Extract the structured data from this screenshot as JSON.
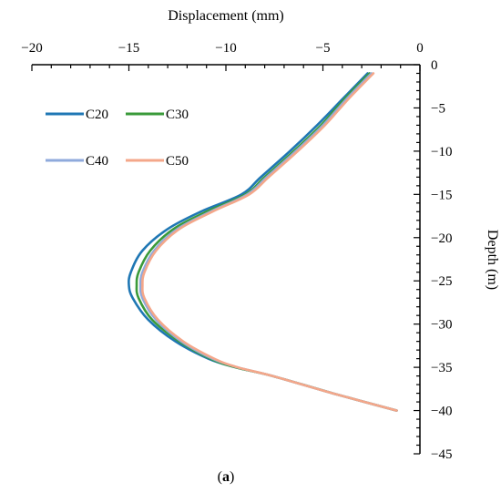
{
  "chart_data": {
    "type": "line",
    "title": "",
    "xlabel": "Displacement (mm)",
    "ylabel": "Depth (m)",
    "xlim": [
      -20,
      0
    ],
    "ylim": [
      -45,
      0
    ],
    "xticks": [
      -20,
      -15,
      -10,
      -5,
      0
    ],
    "yticks": [
      0,
      -5,
      -10,
      -15,
      -20,
      -25,
      -30,
      -35,
      -40,
      -45
    ],
    "x_axis_position": "top",
    "y_axis_position": "right",
    "grid": false,
    "legend_position": "top-left",
    "caption": {
      "open": "(",
      "letter": "a",
      "close": ")"
    },
    "series": [
      {
        "name": "C20",
        "color": "#1f77b4",
        "points": [
          [
            -2.7,
            -1
          ],
          [
            -4.0,
            -4
          ],
          [
            -5.3,
            -7
          ],
          [
            -6.7,
            -10
          ],
          [
            -8.2,
            -13
          ],
          [
            -9.2,
            -15
          ],
          [
            -11.3,
            -17
          ],
          [
            -13.0,
            -19
          ],
          [
            -14.3,
            -21.5
          ],
          [
            -14.9,
            -24
          ],
          [
            -15.0,
            -25.5
          ],
          [
            -14.8,
            -27
          ],
          [
            -14.0,
            -29.5
          ],
          [
            -12.6,
            -32
          ],
          [
            -10.9,
            -34
          ],
          [
            -9.5,
            -35
          ],
          [
            -7.6,
            -36
          ],
          [
            -4.5,
            -38
          ],
          [
            -1.2,
            -40
          ]
        ]
      },
      {
        "name": "C30",
        "color": "#3a9a3a",
        "points": [
          [
            -2.6,
            -1
          ],
          [
            -3.9,
            -4
          ],
          [
            -5.1,
            -7
          ],
          [
            -6.5,
            -10
          ],
          [
            -8.0,
            -13
          ],
          [
            -9.0,
            -15
          ],
          [
            -11.0,
            -17
          ],
          [
            -12.7,
            -19
          ],
          [
            -13.9,
            -21.5
          ],
          [
            -14.5,
            -24
          ],
          [
            -14.6,
            -25.5
          ],
          [
            -14.5,
            -27
          ],
          [
            -13.8,
            -29.5
          ],
          [
            -12.4,
            -32
          ],
          [
            -10.8,
            -34
          ],
          [
            -9.5,
            -35
          ],
          [
            -7.6,
            -36
          ],
          [
            -4.5,
            -38
          ],
          [
            -1.2,
            -40
          ]
        ]
      },
      {
        "name": "C40",
        "color": "#8faadc",
        "points": [
          [
            -2.5,
            -1
          ],
          [
            -3.8,
            -4
          ],
          [
            -5.0,
            -7
          ],
          [
            -6.4,
            -10
          ],
          [
            -7.9,
            -13
          ],
          [
            -8.9,
            -15
          ],
          [
            -10.8,
            -17
          ],
          [
            -12.5,
            -19
          ],
          [
            -13.7,
            -21.5
          ],
          [
            -14.3,
            -24
          ],
          [
            -14.4,
            -25.5
          ],
          [
            -14.3,
            -27
          ],
          [
            -13.6,
            -29.5
          ],
          [
            -12.3,
            -32
          ],
          [
            -10.7,
            -34
          ],
          [
            -9.4,
            -35
          ],
          [
            -7.6,
            -36
          ],
          [
            -4.5,
            -38
          ],
          [
            -1.2,
            -40
          ]
        ]
      },
      {
        "name": "C50",
        "color": "#f4a78a",
        "points": [
          [
            -2.4,
            -1
          ],
          [
            -3.7,
            -4
          ],
          [
            -4.9,
            -7
          ],
          [
            -6.3,
            -10
          ],
          [
            -7.8,
            -13
          ],
          [
            -8.8,
            -15
          ],
          [
            -10.7,
            -17
          ],
          [
            -12.4,
            -19
          ],
          [
            -13.6,
            -21.5
          ],
          [
            -14.2,
            -24
          ],
          [
            -14.3,
            -25.5
          ],
          [
            -14.2,
            -27
          ],
          [
            -13.5,
            -29.5
          ],
          [
            -12.2,
            -32
          ],
          [
            -10.6,
            -34
          ],
          [
            -9.4,
            -35
          ],
          [
            -7.6,
            -36
          ],
          [
            -4.5,
            -38
          ],
          [
            -1.2,
            -40
          ]
        ]
      }
    ]
  }
}
